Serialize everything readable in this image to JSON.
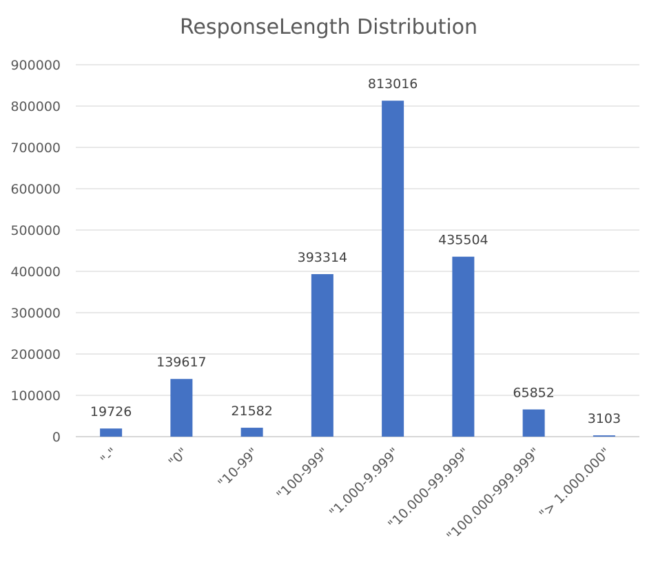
{
  "chart_data": {
    "type": "bar",
    "title": "ResponseLength Distribution",
    "xlabel": "",
    "ylabel": "",
    "categories": [
      "\"-\"",
      "\"0\"",
      "\"10-99\"",
      "\"100-999\"",
      "\"1.000-9.999\"",
      "\"10.000-99.999\"",
      "\"100.000-999.999\"",
      "\"> 1.000.000\""
    ],
    "values": [
      19726,
      139617,
      21582,
      393314,
      813016,
      435504,
      65852,
      3103
    ],
    "data_labels": [
      "19726",
      "139617",
      "21582",
      "393314",
      "813016",
      "435504",
      "65852",
      "3103"
    ],
    "ylim": [
      0,
      900000
    ],
    "yticks": [
      0,
      100000,
      200000,
      300000,
      400000,
      500000,
      600000,
      700000,
      800000,
      900000
    ],
    "ytick_labels": [
      "0",
      "100000",
      "200000",
      "300000",
      "400000",
      "500000",
      "600000",
      "700000",
      "800000",
      "900000"
    ],
    "grid": true,
    "legend": "none",
    "bar_color": "#4472c4"
  }
}
